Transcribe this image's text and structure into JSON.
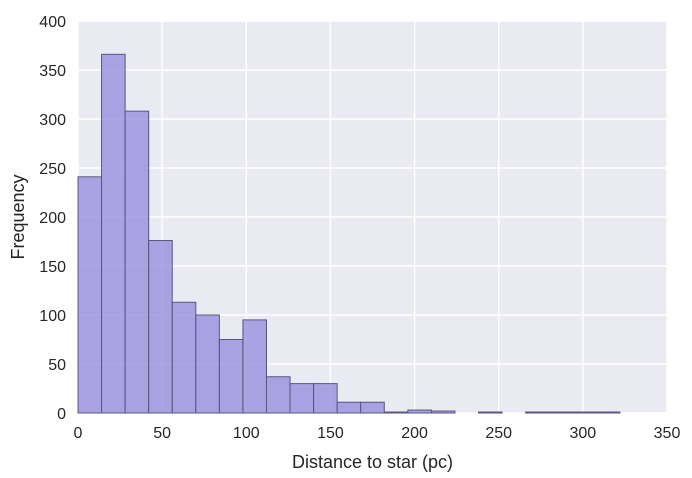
{
  "chart_data": {
    "type": "bar",
    "subtype": "histogram",
    "title": "",
    "xlabel": "Distance to star (pc)",
    "ylabel": "Frequency",
    "xlim": [
      0,
      350
    ],
    "ylim": [
      0,
      400
    ],
    "xticks": [
      0,
      50,
      100,
      150,
      200,
      250,
      300,
      350
    ],
    "yticks": [
      0,
      50,
      100,
      150,
      200,
      250,
      300,
      350,
      400
    ],
    "grid": true,
    "legend": "none",
    "bin_width": 14,
    "bins": [
      {
        "x0": 0,
        "x1": 14,
        "value": 241
      },
      {
        "x0": 14,
        "x1": 28,
        "value": 366
      },
      {
        "x0": 28,
        "x1": 42,
        "value": 308
      },
      {
        "x0": 42,
        "x1": 56,
        "value": 176
      },
      {
        "x0": 56,
        "x1": 70,
        "value": 113
      },
      {
        "x0": 70,
        "x1": 84,
        "value": 100
      },
      {
        "x0": 84,
        "x1": 98,
        "value": 75
      },
      {
        "x0": 98,
        "x1": 112,
        "value": 95
      },
      {
        "x0": 112,
        "x1": 126,
        "value": 37
      },
      {
        "x0": 126,
        "x1": 140,
        "value": 30
      },
      {
        "x0": 140,
        "x1": 154,
        "value": 30
      },
      {
        "x0": 154,
        "x1": 168,
        "value": 11
      },
      {
        "x0": 168,
        "x1": 182,
        "value": 11
      },
      {
        "x0": 182,
        "x1": 196,
        "value": 1
      },
      {
        "x0": 196,
        "x1": 210,
        "value": 3
      },
      {
        "x0": 210,
        "x1": 224,
        "value": 2
      },
      {
        "x0": 224,
        "x1": 238,
        "value": 0
      },
      {
        "x0": 238,
        "x1": 252,
        "value": 1
      },
      {
        "x0": 252,
        "x1": 266,
        "value": 0
      },
      {
        "x0": 266,
        "x1": 280,
        "value": 1
      },
      {
        "x0": 280,
        "x1": 294,
        "value": 1
      },
      {
        "x0": 294,
        "x1": 308,
        "value": 1
      },
      {
        "x0": 308,
        "x1": 322,
        "value": 1
      }
    ],
    "colors": {
      "bar_fill": "#9b93de",
      "bar_edge": "#5a5580",
      "plot_background": "#eaeaf2",
      "grid": "#ffffff"
    }
  }
}
